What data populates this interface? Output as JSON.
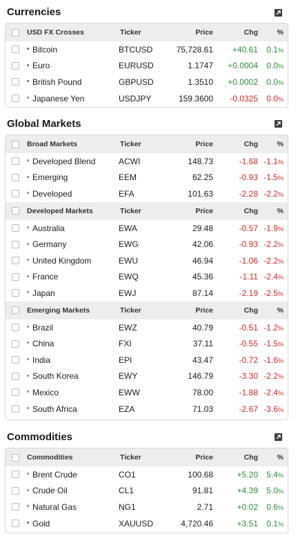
{
  "sections": {
    "currencies": {
      "title": "Currencies",
      "groups": [
        {
          "header": {
            "name": "USD FX Crosses",
            "ticker": "Ticker",
            "price": "Price",
            "chg": "Chg",
            "pct": "%"
          },
          "rows": [
            {
              "name": "Bitcoin",
              "ticker": "BTCUSD",
              "price": "75,728.61",
              "chg": "+40.61",
              "pct": "0.1",
              "dir": "pos"
            },
            {
              "name": "Euro",
              "ticker": "EURUSD",
              "price": "1.1747",
              "chg": "+0.0004",
              "pct": "0.0",
              "dir": "pos"
            },
            {
              "name": "British Pound",
              "ticker": "GBPUSD",
              "price": "1.3510",
              "chg": "+0.0002",
              "pct": "0.0",
              "dir": "pos"
            },
            {
              "name": "Japanese Yen",
              "ticker": "USDJPY",
              "price": "159.3600",
              "chg": "-0.0325",
              "pct": "0.0",
              "dir": "neg"
            }
          ]
        }
      ]
    },
    "global": {
      "title": "Global Markets",
      "groups": [
        {
          "header": {
            "name": "Broad Markets",
            "ticker": "Ticker",
            "price": "Price",
            "chg": "Chg",
            "pct": "%"
          },
          "rows": [
            {
              "name": "Developed Blend",
              "ticker": "ACWI",
              "price": "148.73",
              "chg": "-1.68",
              "pct": "-1.1",
              "dir": "neg"
            },
            {
              "name": "Emerging",
              "ticker": "EEM",
              "price": "62.25",
              "chg": "-0.93",
              "pct": "-1.5",
              "dir": "neg"
            },
            {
              "name": "Developed",
              "ticker": "EFA",
              "price": "101.63",
              "chg": "-2.28",
              "pct": "-2.2",
              "dir": "neg"
            }
          ]
        },
        {
          "header": {
            "name": "Developed Markets",
            "ticker": "Ticker",
            "price": "Price",
            "chg": "Chg",
            "pct": "%"
          },
          "rows": [
            {
              "name": "Australia",
              "ticker": "EWA",
              "price": "29.48",
              "chg": "-0.57",
              "pct": "-1.9",
              "dir": "neg"
            },
            {
              "name": "Germany",
              "ticker": "EWG",
              "price": "42.06",
              "chg": "-0.93",
              "pct": "-2.2",
              "dir": "neg"
            },
            {
              "name": "United Kingdom",
              "ticker": "EWU",
              "price": "46.94",
              "chg": "-1.06",
              "pct": "-2.2",
              "dir": "neg"
            },
            {
              "name": "France",
              "ticker": "EWQ",
              "price": "45.36",
              "chg": "-1.11",
              "pct": "-2.4",
              "dir": "neg"
            },
            {
              "name": "Japan",
              "ticker": "EWJ",
              "price": "87.14",
              "chg": "-2.19",
              "pct": "-2.5",
              "dir": "neg"
            }
          ]
        },
        {
          "header": {
            "name": "Emerging Markets",
            "ticker": "Ticker",
            "price": "Price",
            "chg": "Chg",
            "pct": "%"
          },
          "rows": [
            {
              "name": "Brazil",
              "ticker": "EWZ",
              "price": "40.79",
              "chg": "-0.51",
              "pct": "-1.2",
              "dir": "neg"
            },
            {
              "name": "China",
              "ticker": "FXI",
              "price": "37.11",
              "chg": "-0.55",
              "pct": "-1.5",
              "dir": "neg"
            },
            {
              "name": "India",
              "ticker": "EPI",
              "price": "43.47",
              "chg": "-0.72",
              "pct": "-1.6",
              "dir": "neg"
            },
            {
              "name": "South Korea",
              "ticker": "EWY",
              "price": "146.79",
              "chg": "-3.30",
              "pct": "-2.2",
              "dir": "neg"
            },
            {
              "name": "Mexico",
              "ticker": "EWW",
              "price": "78.00",
              "chg": "-1.88",
              "pct": "-2.4",
              "dir": "neg"
            },
            {
              "name": "South Africa",
              "ticker": "EZA",
              "price": "71.03",
              "chg": "-2.67",
              "pct": "-3.6",
              "dir": "neg"
            }
          ]
        }
      ]
    },
    "commodities": {
      "title": "Commodities",
      "groups": [
        {
          "header": {
            "name": "Commodities",
            "ticker": "Ticker",
            "price": "Price",
            "chg": "Chg",
            "pct": "%"
          },
          "rows": [
            {
              "name": "Brent Crude",
              "ticker": "CO1",
              "price": "100.68",
              "chg": "+5.20",
              "pct": "5.4",
              "dir": "pos"
            },
            {
              "name": "Crude Oil",
              "ticker": "CL1",
              "price": "91.81",
              "chg": "+4.39",
              "pct": "5.0",
              "dir": "pos"
            },
            {
              "name": "Natural Gas",
              "ticker": "NG1",
              "price": "2.71",
              "chg": "+0.02",
              "pct": "0.6",
              "dir": "pos"
            },
            {
              "name": "Gold",
              "ticker": "XAUUSD",
              "price": "4,720.46",
              "chg": "+3.51",
              "pct": "0.1",
              "dir": "pos"
            }
          ]
        }
      ]
    }
  },
  "pct_symbol": "%",
  "icons": {
    "expand": "expand-arrow-icon",
    "bullet": "bullet-dot-icon"
  },
  "colors": {
    "positive": "#2e8b3a",
    "negative": "#cc2a2a",
    "header_bg": "#ededed"
  }
}
